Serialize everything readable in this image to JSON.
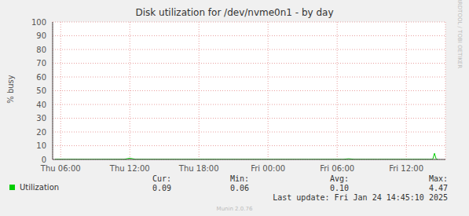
{
  "chart_data": {
    "type": "line",
    "title": "Disk utilization for /dev/nvme0n1 - by day",
    "y_label": "% busy",
    "x": [
      5.5,
      6.5,
      7.5,
      8.5,
      9.5,
      10.5,
      11.5,
      12.0,
      12.5,
      13.5,
      14.5,
      15.5,
      16.5,
      17.5,
      18.5,
      19.5,
      20.5,
      21.5,
      22.5,
      23.5,
      24.5,
      25.5,
      26.5,
      27.5,
      28.5,
      29.5,
      30.5,
      31.0,
      31.5,
      32.5,
      33.5,
      34.5,
      35.5,
      36.5,
      37.5,
      38.0,
      38.3,
      38.45,
      38.6,
      38.75
    ],
    "series": [
      {
        "name": "Utilization",
        "color": "#00cc00",
        "values": [
          0.1,
          0.09,
          0.1,
          0.08,
          0.1,
          0.11,
          0.12,
          0.9,
          0.12,
          0.1,
          0.09,
          0.1,
          0.08,
          0.09,
          0.1,
          0.09,
          0.08,
          0.07,
          0.08,
          0.06,
          0.07,
          0.08,
          0.07,
          0.08,
          0.09,
          0.1,
          0.12,
          0.5,
          0.12,
          0.1,
          0.09,
          0.1,
          0.11,
          0.1,
          0.12,
          0.1,
          0.15,
          4.47,
          0.2,
          0.09
        ]
      }
    ],
    "xlim": [
      5.3,
      39.4
    ],
    "xticks": [
      {
        "value": 6,
        "label": "Thu 06:00"
      },
      {
        "value": 12,
        "label": "Thu 12:00"
      },
      {
        "value": 18,
        "label": "Thu 18:00"
      },
      {
        "value": 24,
        "label": "Fri 00:00"
      },
      {
        "value": 30,
        "label": "Fri 06:00"
      },
      {
        "value": 36,
        "label": "Fri 12:00"
      }
    ],
    "ylim": [
      0,
      100
    ],
    "yticks": [
      0,
      10,
      20,
      30,
      40,
      50,
      60,
      70,
      80,
      90,
      100
    ],
    "grid": true,
    "legend": "bottom",
    "stats": {
      "headers": [
        "Cur:",
        "Min:",
        "Avg:",
        "Max:"
      ],
      "values": [
        "0.09",
        "0.06",
        "0.10",
        "4.47"
      ]
    },
    "last_update": "Last update: Fri Jan 24 14:45:10 2025",
    "footer": "Munin 2.0.76",
    "side_label": "RRDTOOL / TOBI OETIKER"
  }
}
